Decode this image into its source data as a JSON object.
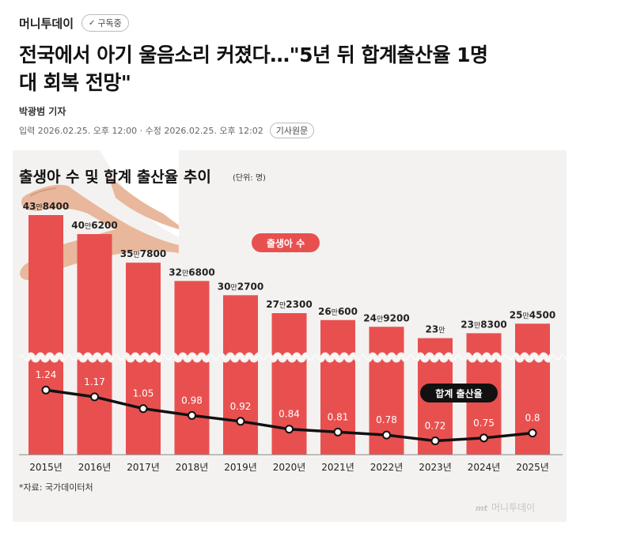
{
  "article": {
    "publisher": "머니투데이",
    "subscribe_label": "구독중",
    "headline_line1": "전국에서 아기 울음소리 커졌다…\"5년 뒤 합계출산율 1명",
    "headline_line2": "대 회복 전망\"",
    "reporter": "박광범 기자",
    "dates": "입력 2026.02.25. 오후 12:00 · 수정 2026.02.25. 오후 12:02",
    "original_button": "기사원문"
  },
  "colors": {
    "bar": "#e8504f",
    "line": "#111111",
    "background": "#f3f2f1",
    "legend_births": "#e8504f",
    "legend_tfr": "#111111"
  },
  "chart_data": {
    "type": "bar",
    "title": "출생아 수 및 합계 출산율 추이",
    "unit": "(단위: 명)",
    "categories": [
      "2015년",
      "2016년",
      "2017년",
      "2018년",
      "2019년",
      "2020년",
      "2021년",
      "2022년",
      "2023년",
      "2024년",
      "2025년"
    ],
    "series": [
      {
        "name": "출생아 수",
        "type": "bar",
        "values": [
          438400,
          406200,
          357800,
          326800,
          302700,
          272300,
          260600,
          249200,
          230000,
          238300,
          254500
        ],
        "labels_man": [
          "43",
          "40",
          "35",
          "32",
          "30",
          "27",
          "26",
          "24",
          "23",
          "23",
          "25"
        ],
        "labels_rest": [
          "8400",
          "6200",
          "7800",
          "6800",
          "2700",
          "2300",
          "600",
          "9200",
          "",
          "8300",
          "4500"
        ]
      },
      {
        "name": "합계 출산율",
        "type": "line",
        "values": [
          1.24,
          1.17,
          1.05,
          0.98,
          0.92,
          0.84,
          0.81,
          0.78,
          0.72,
          0.75,
          0.8
        ],
        "labels": [
          "1.24",
          "1.17",
          "1.05",
          "0.98",
          "0.92",
          "0.84",
          "0.81",
          "0.78",
          "0.72",
          "0.75",
          "0.8"
        ]
      }
    ],
    "man_unit": "만",
    "axis_break": true,
    "source": "*자료: 국가데이터처",
    "watermark": "머니투데이",
    "watermark_prefix": "mt"
  }
}
